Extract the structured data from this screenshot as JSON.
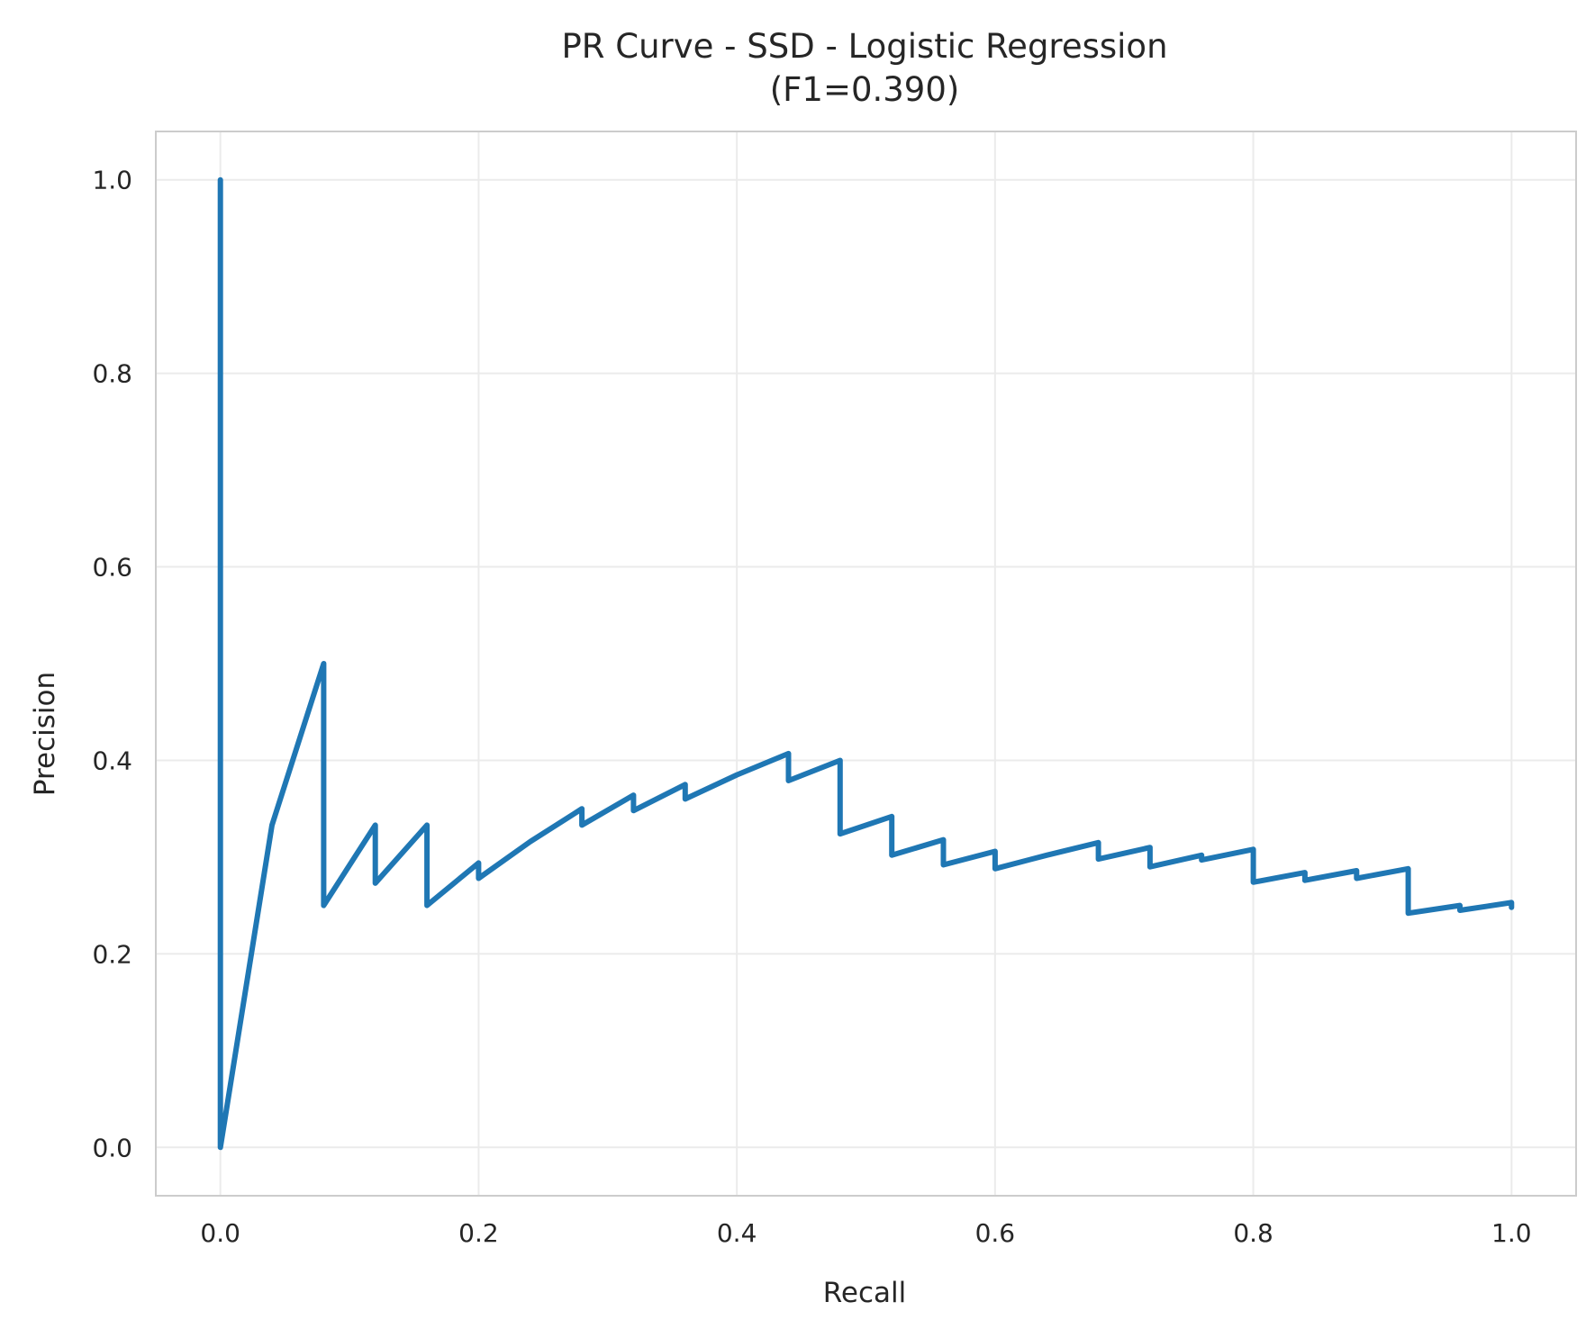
{
  "chart_data": {
    "type": "line",
    "title": "PR Curve - SSD - Logistic Regression",
    "subtitle": "(F1=0.390)",
    "xlabel": "Recall",
    "ylabel": "Precision",
    "xlim": [
      -0.05,
      1.05
    ],
    "ylim": [
      -0.05,
      1.05
    ],
    "xticks": [
      0.0,
      0.2,
      0.4,
      0.6,
      0.8,
      1.0
    ],
    "yticks": [
      0.0,
      0.2,
      0.4,
      0.6,
      0.8,
      1.0
    ],
    "xtick_labels": [
      "0.0",
      "0.2",
      "0.4",
      "0.6",
      "0.8",
      "1.0"
    ],
    "ytick_labels": [
      "0.0",
      "0.2",
      "0.4",
      "0.6",
      "0.8",
      "1.0"
    ],
    "grid": true,
    "legend": false,
    "series": [
      {
        "color": "#1f77b4",
        "x": [
          0.0,
          0.0,
          0.04,
          0.08,
          0.08,
          0.12,
          0.12,
          0.16,
          0.16,
          0.2,
          0.2,
          0.24,
          0.28,
          0.28,
          0.32,
          0.32,
          0.36,
          0.36,
          0.4,
          0.44,
          0.44,
          0.48,
          0.48,
          0.52,
          0.52,
          0.56,
          0.56,
          0.6,
          0.6,
          0.64,
          0.68,
          0.68,
          0.72,
          0.72,
          0.76,
          0.76,
          0.8,
          0.8,
          0.84,
          0.84,
          0.88,
          0.88,
          0.92,
          0.92,
          0.96,
          0.96,
          1.0,
          1.0
        ],
        "y": [
          1.0,
          0.0,
          0.333,
          0.5,
          0.25,
          0.333,
          0.273,
          0.333,
          0.25,
          0.294,
          0.278,
          0.316,
          0.35,
          0.333,
          0.364,
          0.348,
          0.375,
          0.36,
          0.385,
          0.407,
          0.379,
          0.4,
          0.324,
          0.342,
          0.302,
          0.318,
          0.292,
          0.306,
          0.288,
          0.302,
          0.315,
          0.298,
          0.31,
          0.29,
          0.302,
          0.297,
          0.308,
          0.274,
          0.284,
          0.276,
          0.286,
          0.278,
          0.288,
          0.242,
          0.25,
          0.245,
          0.253,
          0.248
        ]
      }
    ]
  }
}
